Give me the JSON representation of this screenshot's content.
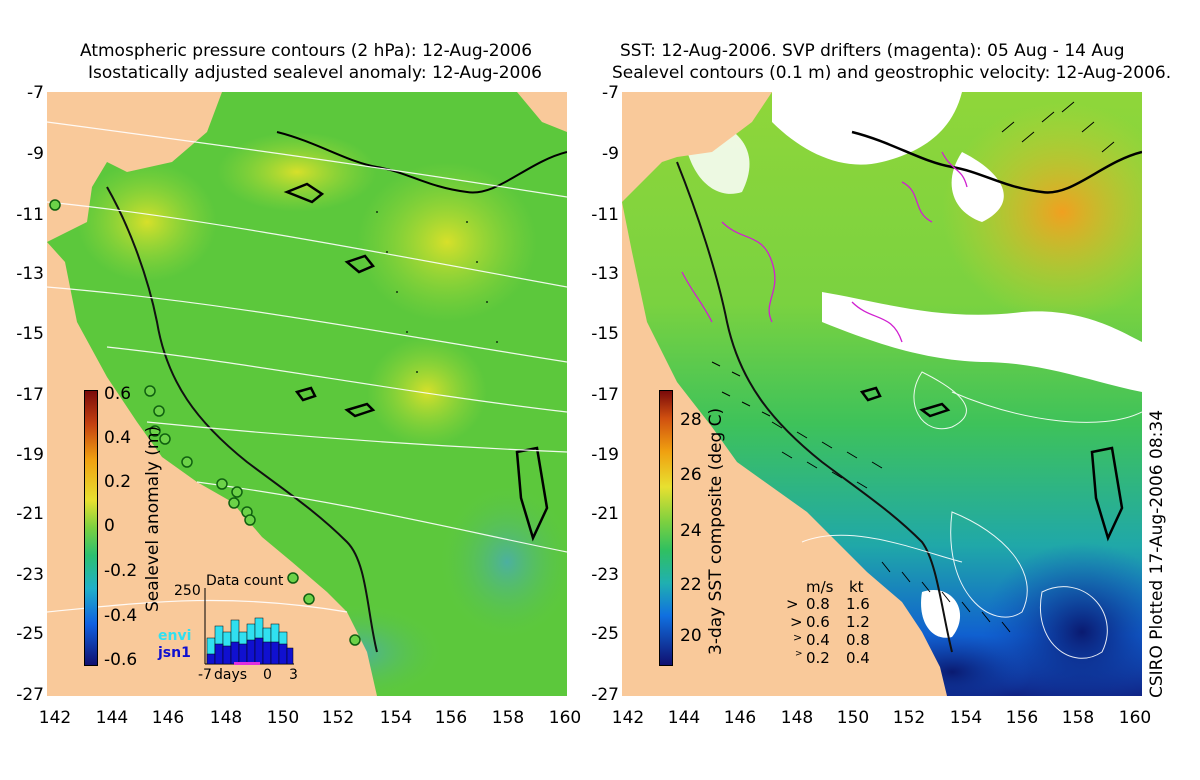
{
  "left_map": {
    "title_line1": "Atmospheric pressure contours (2 hPa): 12-Aug-2006",
    "title_line2": "Isostatically adjusted sealevel anomaly: 12-Aug-2006",
    "colorbar_label": "Sealevel anomaly (m)",
    "colorbar_ticks": [
      "0.6",
      "0.4",
      "0.2",
      "0",
      "-0.2",
      "-0.4",
      "-0.6"
    ],
    "inset": {
      "title": "Data count",
      "ymax": "250",
      "series": [
        "envi",
        "jsn1"
      ],
      "xticks": [
        "-7",
        "days",
        "0",
        "3"
      ]
    }
  },
  "right_map": {
    "title_line1": "SST: 12-Aug-2006. SVP drifters (magenta): 05 Aug - 14 Aug",
    "title_line2": "Sealevel contours (0.1 m) and geostrophic velocity: 12-Aug-2006.",
    "colorbar_label": "3-day SST composite (deg C)",
    "colorbar_ticks": [
      "28",
      "26",
      "24",
      "22",
      "20"
    ],
    "velocity_legend": {
      "header_ms": "m/s",
      "header_kt": "kt",
      "rows": [
        {
          "ms": "0.8",
          "kt": "1.6"
        },
        {
          "ms": "0.6",
          "kt": "1.2"
        },
        {
          "ms": "0.4",
          "kt": "0.8"
        },
        {
          "ms": "0.2",
          "kt": "0.4"
        }
      ]
    },
    "credit": "CSIRO Plotted 17-Aug-2006 08:34"
  },
  "axes": {
    "y_ticks": [
      "-7",
      "-9",
      "-11",
      "-13",
      "-15",
      "-17",
      "-19",
      "-21",
      "-23",
      "-25",
      "-27"
    ],
    "x_ticks": [
      "142",
      "144",
      "146",
      "148",
      "150",
      "152",
      "154",
      "156",
      "158",
      "160"
    ]
  },
  "colors": {
    "land": "#f9c99a",
    "sla_mid": "#5cc83c",
    "sst_mid": "#3fc24a",
    "cloud": "#ffffff",
    "drifter": "#d020d0"
  }
}
